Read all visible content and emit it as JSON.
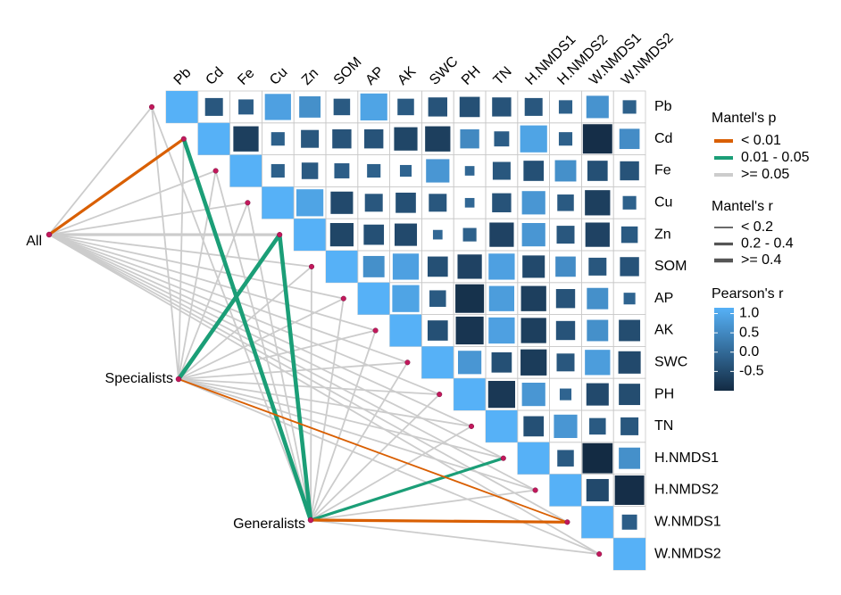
{
  "chart_data": {
    "type": "mantel",
    "variables": [
      "Pb",
      "Cd",
      "Fe",
      "Cu",
      "Zn",
      "SOM",
      "AP",
      "AK",
      "SWC",
      "PH",
      "TN",
      "H.NMDS1",
      "H.NMDS2",
      "W.NMDS1",
      "W.NMDS2"
    ],
    "matrix": [
      [
        1,
        -0.35,
        -0.25,
        0.75,
        0.5,
        -0.3,
        0.8,
        -0.3,
        -0.4,
        -0.45,
        -0.4,
        -0.35,
        -0.2,
        0.55,
        -0.2
      ],
      [
        null,
        1,
        -0.7,
        -0.2,
        -0.35,
        -0.4,
        -0.4,
        -0.6,
        -0.7,
        0.4,
        -0.25,
        0.8,
        -0.2,
        -0.95,
        0.45
      ],
      [
        null,
        null,
        1,
        -0.2,
        -0.3,
        -0.25,
        -0.2,
        -0.15,
        0.6,
        -0.1,
        -0.35,
        -0.45,
        0.5,
        -0.45,
        -0.4
      ],
      [
        null,
        null,
        null,
        1,
        0.8,
        -0.55,
        -0.35,
        -0.45,
        -0.35,
        -0.1,
        -0.4,
        0.6,
        -0.3,
        -0.7,
        -0.2
      ],
      [
        null,
        null,
        null,
        null,
        1,
        -0.6,
        -0.45,
        -0.55,
        -0.1,
        -0.2,
        -0.65,
        0.6,
        -0.35,
        -0.65,
        -0.3
      ],
      [
        null,
        null,
        null,
        null,
        null,
        1,
        0.5,
        0.75,
        -0.45,
        -0.65,
        0.75,
        -0.55,
        0.45,
        -0.35,
        -0.4
      ],
      [
        null,
        null,
        null,
        null,
        null,
        null,
        1,
        0.8,
        -0.3,
        -0.9,
        0.7,
        -0.7,
        -0.4,
        0.5,
        -0.15
      ],
      [
        null,
        null,
        null,
        null,
        null,
        null,
        null,
        1,
        -0.45,
        -0.85,
        0.75,
        -0.7,
        -0.4,
        0.5,
        -0.5
      ],
      [
        null,
        null,
        null,
        null,
        null,
        null,
        null,
        null,
        1,
        0.6,
        -0.45,
        -0.75,
        -0.35,
        0.7,
        -0.55
      ],
      [
        null,
        null,
        null,
        null,
        null,
        null,
        null,
        null,
        null,
        1,
        -0.8,
        0.6,
        -0.15,
        -0.55,
        -0.5
      ],
      [
        null,
        null,
        null,
        null,
        null,
        null,
        null,
        null,
        null,
        null,
        1,
        -0.45,
        0.6,
        -0.3,
        -0.35
      ],
      [
        null,
        null,
        null,
        null,
        null,
        null,
        null,
        null,
        null,
        null,
        null,
        1,
        -0.3,
        -1.0,
        0.5
      ],
      [
        null,
        null,
        null,
        null,
        null,
        null,
        null,
        null,
        null,
        null,
        null,
        null,
        1,
        -0.55,
        -0.95
      ],
      [
        null,
        null,
        null,
        null,
        null,
        null,
        null,
        null,
        null,
        null,
        null,
        null,
        null,
        1,
        -0.25
      ],
      [
        null,
        null,
        null,
        null,
        null,
        null,
        null,
        null,
        null,
        null,
        null,
        null,
        null,
        null,
        1
      ]
    ],
    "color_low": "#132B43",
    "color_high": "#56B1F7",
    "colorbar_title": "Pearson's r",
    "colorbar_lim": [
      -1,
      1.15
    ],
    "colorbar_ticks": [
      {
        "value": 1,
        "label": "1.0"
      },
      0.5,
      {
        "value": 0,
        "label": "0.0"
      },
      -0.5
    ],
    "p_legend": {
      "title": "Mantel's p",
      "entries": [
        {
          "label": "< 0.01",
          "color": "#d95f02"
        },
        {
          "label": "0.01 - 0.05",
          "color": "#1b9e77"
        },
        {
          "label": ">= 0.05",
          "color": "#cccccc"
        }
      ]
    },
    "r_legend": {
      "title": "Mantel's r",
      "entries": [
        {
          "label": "< 0.2"
        },
        {
          "label": "0.2 - 0.4"
        },
        {
          "label": ">= 0.4"
        }
      ]
    },
    "groups": [
      {
        "name": "All",
        "p": [
          ">= 0.05",
          "< 0.01",
          ">= 0.05",
          ">= 0.05",
          ">= 0.05",
          ">= 0.05",
          ">= 0.05",
          ">= 0.05",
          ">= 0.05",
          ">= 0.05",
          ">= 0.05",
          ">= 0.05",
          ">= 0.05",
          ">= 0.05",
          ">= 0.05"
        ],
        "r": [
          "< 0.2",
          "0.2 - 0.4",
          "< 0.2",
          "< 0.2",
          "0.2 - 0.4",
          "< 0.2",
          "< 0.2",
          "< 0.2",
          "< 0.2",
          "< 0.2",
          "< 0.2",
          "< 0.2",
          "< 0.2",
          "< 0.2",
          "< 0.2"
        ]
      },
      {
        "name": "Specialists",
        "p": [
          ">= 0.05",
          ">= 0.05",
          ">= 0.05",
          ">= 0.05",
          "0.01 - 0.05",
          ">= 0.05",
          ">= 0.05",
          ">= 0.05",
          ">= 0.05",
          ">= 0.05",
          ">= 0.05",
          ">= 0.05",
          ">= 0.05",
          "< 0.01",
          ">= 0.05"
        ],
        "r": [
          "< 0.2",
          "< 0.2",
          "< 0.2",
          "< 0.2",
          ">= 0.4",
          "< 0.2",
          "< 0.2",
          "< 0.2",
          "< 0.2",
          "< 0.2",
          "< 0.2",
          "< 0.2",
          "< 0.2",
          "< 0.2",
          "< 0.2"
        ]
      },
      {
        "name": "Generalists",
        "p": [
          ">= 0.05",
          "0.01 - 0.05",
          ">= 0.05",
          ">= 0.05",
          "0.01 - 0.05",
          ">= 0.05",
          ">= 0.05",
          ">= 0.05",
          ">= 0.05",
          ">= 0.05",
          ">= 0.05",
          "0.01 - 0.05",
          ">= 0.05",
          "< 0.01",
          ">= 0.05"
        ],
        "r": [
          "< 0.2",
          ">= 0.4",
          "< 0.2",
          "< 0.2",
          ">= 0.4",
          "< 0.2",
          "< 0.2",
          "< 0.2",
          "< 0.2",
          "< 0.2",
          "< 0.2",
          "0.2 - 0.4",
          "< 0.2",
          "0.2 - 0.4",
          "< 0.2"
        ]
      }
    ]
  }
}
